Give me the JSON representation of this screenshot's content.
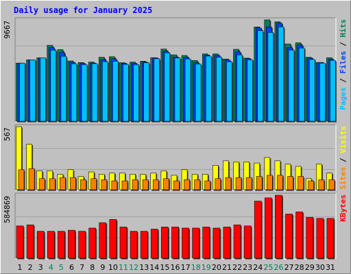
{
  "chart_data": {
    "type": "bar",
    "title": "Daily usage for January 2025",
    "colors": {
      "hits": "#00805c",
      "files": "#0040ff",
      "pages": "#00c0ff",
      "visits": "#ffff00",
      "sites": "#ff8000",
      "kbytes": "#ff0000",
      "title": "#0000ff",
      "panel_bg": "#c0c0c0",
      "gridline": "#a0a0a0",
      "weekend_day": "#00805c",
      "weekday_day": "#000000"
    },
    "days": [
      "1",
      "2",
      "3",
      "4",
      "5",
      "6",
      "7",
      "8",
      "9",
      "10",
      "11",
      "12",
      "13",
      "14",
      "15",
      "16",
      "17",
      "18",
      "19",
      "20",
      "21",
      "22",
      "23",
      "24",
      "25",
      "26",
      "27",
      "28",
      "29",
      "30",
      "31"
    ],
    "weekend_days": [
      "4",
      "5",
      "11",
      "12",
      "18",
      "19",
      "25",
      "26"
    ],
    "panels": [
      {
        "key": "top",
        "max_label": "9667",
        "max": 9667,
        "legend": [
          "Pages",
          "Files",
          "Hits"
        ],
        "series": [
          {
            "name": "Hits",
            "values": [
              5540,
              5850,
              6050,
              7240,
              6830,
              5750,
              5600,
              5640,
              6100,
              6150,
              5580,
              5640,
              5720,
              6060,
              6880,
              6330,
              6270,
              5790,
              6420,
              6420,
              5930,
              6860,
              6020,
              8990,
              9667,
              9480,
              7370,
              7480,
              6100,
              5600,
              6060
            ]
          },
          {
            "name": "Files",
            "values": [
              5540,
              5850,
              6050,
              7020,
              6560,
              5620,
              5520,
              5550,
              5880,
              5960,
              5520,
              5520,
              5640,
              6050,
              6690,
              6120,
              6090,
              5570,
              6300,
              6280,
              5830,
              6610,
              5970,
              8900,
              8990,
              9360,
              7040,
              7270,
              6010,
              5610,
              5890
            ]
          },
          {
            "name": "Pages",
            "values": [
              5540,
              5850,
              6050,
              6780,
              6200,
              5480,
              5400,
              5490,
              5680,
              5730,
              5420,
              5400,
              5580,
              5960,
              6520,
              6040,
              5940,
              5460,
              6210,
              6110,
              5680,
              6330,
              5860,
              8640,
              8470,
              9000,
              6790,
              6980,
              5890,
              5540,
              5800
            ]
          }
        ]
      },
      {
        "key": "mid",
        "max_label": "567",
        "max": 567,
        "legend": [
          "Sites",
          "Visits"
        ],
        "series": [
          {
            "name": "Visits",
            "values": [
              567,
              410,
              170,
              170,
              140,
              180,
              120,
              160,
              140,
              150,
              150,
              140,
              140,
              150,
              170,
              130,
              180,
              140,
              140,
              220,
              260,
              250,
              250,
              240,
              290,
              260,
              230,
              210,
              100,
              230,
              150
            ]
          },
          {
            "name": "Sites",
            "values": [
              180,
              190,
              100,
              100,
              110,
              110,
              90,
              100,
              90,
              80,
              80,
              90,
              90,
              90,
              100,
              80,
              90,
              90,
              80,
              100,
              110,
              110,
              110,
              120,
              130,
              130,
              120,
              120,
              80,
              90,
              90
            ]
          }
        ]
      },
      {
        "key": "bottom",
        "max_label": "584869",
        "max": 584869,
        "legend": [
          "KBytes"
        ],
        "series": [
          {
            "name": "KBytes",
            "values": [
              300000,
              310000,
              250000,
              250000,
              250000,
              260000,
              250000,
              280000,
              330000,
              360000,
              290000,
              250000,
              250000,
              270000,
              290000,
              290000,
              280000,
              280000,
              290000,
              280000,
              290000,
              310000,
              300000,
              530000,
              560000,
              584869,
              410000,
              430000,
              380000,
              370000,
              370000
            ]
          }
        ]
      }
    ]
  }
}
